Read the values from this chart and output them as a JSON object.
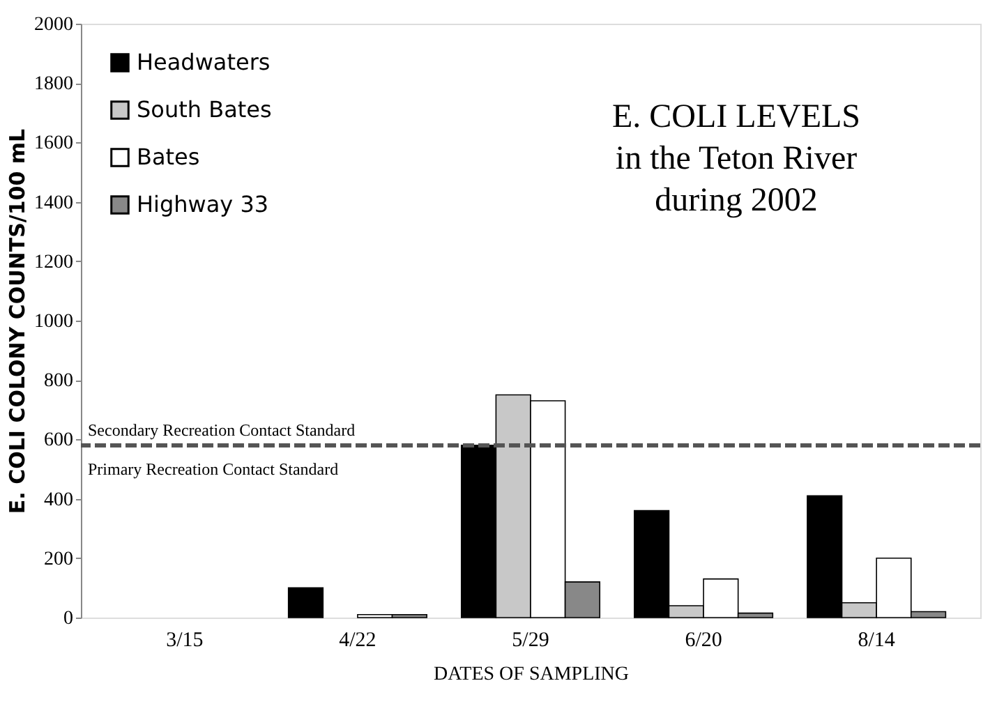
{
  "chart_data": {
    "type": "bar",
    "title": "E. COLI LEVELS\nin the Teton River\nduring 2002",
    "xlabel": "DATES OF SAMPLING",
    "ylabel": "E. COLI COLONY COUNTS/100 mL",
    "categories": [
      "3/15",
      "4/22",
      "5/29",
      "6/20",
      "8/14"
    ],
    "series": [
      {
        "name": "Headwaters",
        "color": "#000000",
        "values": [
          0,
          100,
          580,
          360,
          410
        ]
      },
      {
        "name": "South Bates",
        "color": "#c8c8c8",
        "values": [
          0,
          0,
          750,
          40,
          50
        ]
      },
      {
        "name": "Bates",
        "color": "#ffffff",
        "values": [
          0,
          10,
          730,
          130,
          200
        ]
      },
      {
        "name": "Highway 33",
        "color": "#888888",
        "values": [
          0,
          10,
          120,
          15,
          20
        ]
      }
    ],
    "ylim": [
      0,
      2000
    ],
    "yticks": [
      0,
      200,
      400,
      600,
      800,
      1000,
      1200,
      1400,
      1600,
      1800,
      2000
    ],
    "ref_lines": [
      {
        "axis": "y",
        "value": 580,
        "label": "Secondary Recreation Contact Standard",
        "line_style": "dashed",
        "color": "#555555"
      }
    ],
    "annotations": [
      "Primary Recreation Contact Standard"
    ],
    "legend": "top left",
    "grid": false
  }
}
